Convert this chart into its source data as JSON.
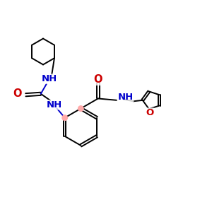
{
  "bg_color": "#ffffff",
  "bond_color": "#000000",
  "N_color": "#0000cc",
  "O_color": "#cc0000",
  "highlight_color": "#ffaaaa",
  "lw": 1.4,
  "font_size": 8.5,
  "figsize": [
    3.0,
    3.0
  ],
  "dpi": 100,
  "xlim": [
    0,
    10
  ],
  "ylim": [
    0,
    10
  ]
}
